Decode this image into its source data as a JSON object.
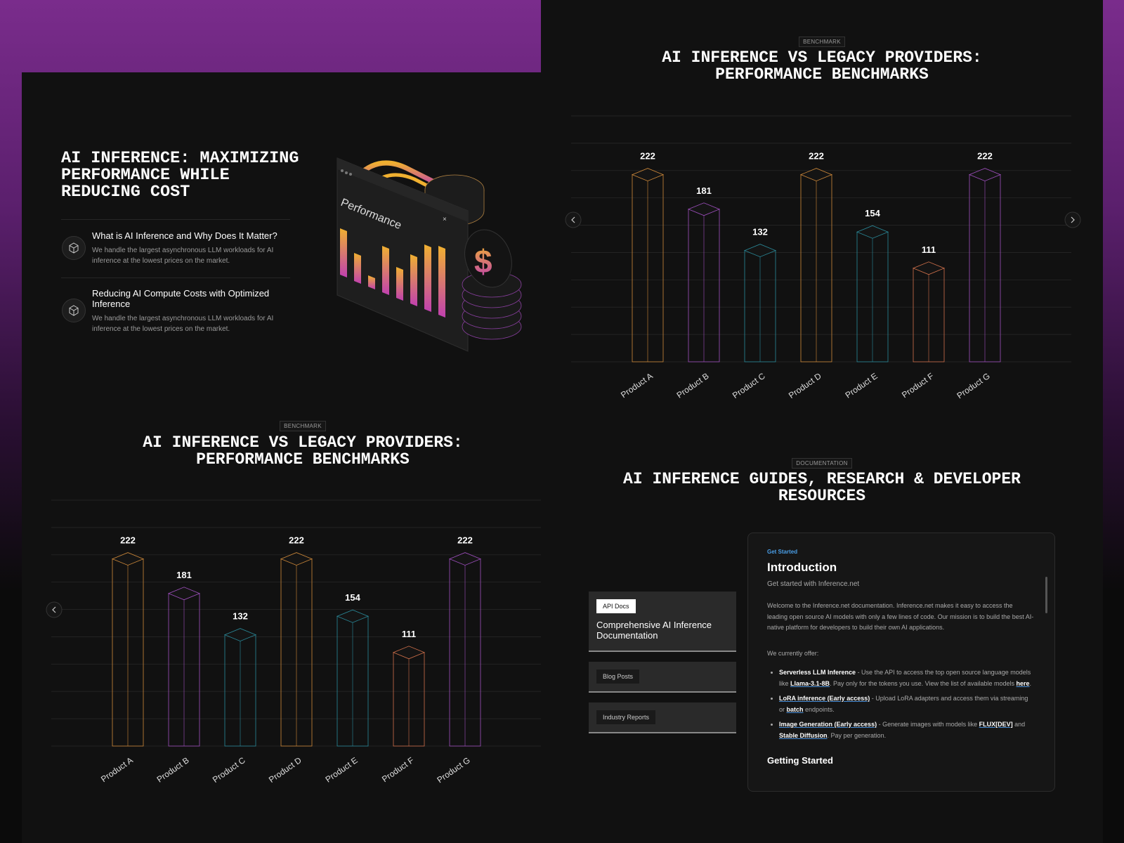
{
  "hero": {
    "title": "AI INFERENCE: MAXIMIZING PERFORMANCE WHILE REDUCING COST",
    "illustration_label": "Performance",
    "items": [
      {
        "heading": "What is AI Inference and Why Does It Matter?",
        "text": "We handle the largest asynchronous LLM workloads for AI inference at the lowest prices on the market."
      },
      {
        "heading": "Reducing AI Compute Costs with Optimized Inference",
        "text": "We handle the largest asynchronous LLM workloads for AI inference at the lowest prices on the market."
      }
    ]
  },
  "chart_data": [
    {
      "type": "bar",
      "badge": "BENCHMARK",
      "title": "AI INFERENCE VS LEGACY PROVIDERS: PERFORMANCE BENCHMARKS",
      "categories": [
        "Product A",
        "Product B",
        "Product C",
        "Product D",
        "Product E",
        "Product F",
        "Product G"
      ],
      "values": [
        222,
        181,
        132,
        222,
        154,
        111,
        222
      ],
      "colors": [
        "#d08a3a",
        "#a04fc0",
        "#2a8a9a",
        "#d08a3a",
        "#2a8a9a",
        "#d0704a",
        "#a04fc0"
      ],
      "ylim": [
        0,
        250
      ]
    },
    {
      "type": "bar",
      "badge": "BENCHMARK",
      "title": "AI INFERENCE VS LEGACY PROVIDERS: PERFORMANCE BENCHMARKS",
      "categories": [
        "Product A",
        "Product B",
        "Product C",
        "Product D",
        "Product E",
        "Product F",
        "Product G"
      ],
      "values": [
        222,
        181,
        132,
        222,
        154,
        111,
        222
      ],
      "colors": [
        "#d08a3a",
        "#a04fc0",
        "#2a8a9a",
        "#d08a3a",
        "#2a8a9a",
        "#d0704a",
        "#a04fc0"
      ],
      "ylim": [
        0,
        250
      ]
    }
  ],
  "documentation": {
    "badge": "DOCUMENTATION",
    "title": "AI INFERENCE GUIDES, RESEARCH & DEVELOPER RESOURCES",
    "tabs": [
      {
        "tag": "API Docs",
        "title": "Comprehensive AI Inference Documentation"
      },
      {
        "tag": "Blog Posts"
      },
      {
        "tag": "Industry Reports"
      }
    ],
    "content": {
      "eyebrow": "Get Started",
      "heading": "Introduction",
      "subheading": "Get started with Inference.net",
      "intro": "Welcome to the Inference.net documentation. Inference.net makes it easy to access the leading open source AI models with only a few lines of code. Our mission is to build the best AI-native platform for developers to build their own AI applications.",
      "offer": "We currently offer:",
      "bullets": [
        [
          {
            "strong": "Serverless LLM Inference"
          },
          {
            "text": " - Use the API to access the top open source language models like "
          },
          {
            "link": "Llama-3.1-8B"
          },
          {
            "text": ". Pay only for the tokens you use. View the list of available models "
          },
          {
            "link": "here"
          },
          {
            "text": "."
          }
        ],
        [
          {
            "link": "LoRA inference (Early access)"
          },
          {
            "text": " - Upload LoRA adapters and access them via streaming or "
          },
          {
            "link": "batch"
          },
          {
            "text": " endpoints."
          }
        ],
        [
          {
            "link": "Image Generation (Early access)"
          },
          {
            "text": " - Generate images with models like "
          },
          {
            "link": "FLUX[DEV]"
          },
          {
            "text": " and "
          },
          {
            "link": "Stable Diffusion"
          },
          {
            "text": ". Pay per generation."
          }
        ]
      ],
      "next_heading": "Getting Started"
    }
  }
}
